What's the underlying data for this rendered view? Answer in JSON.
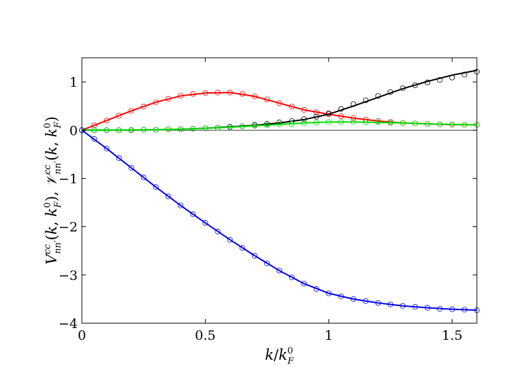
{
  "chart_data": {
    "type": "line",
    "title": "",
    "xlabel": "k/k_F^0",
    "ylabel": "V_nn'^cc(k, k_F^0), 𝒱_nn'^cc(k, k_F^0)",
    "xlim": [
      0,
      1.6
    ],
    "ylim": [
      -4,
      1.5
    ],
    "xticks": [
      0,
      0.5,
      1,
      1.5
    ],
    "xtick_labels": [
      "0",
      "0.5",
      "1",
      "1.5"
    ],
    "yticks": [
      -4,
      -3,
      -2,
      -1,
      0,
      1
    ],
    "ytick_labels": [
      "−4",
      "−3",
      "−2",
      "−1",
      "0",
      "1"
    ],
    "grid": false,
    "legend": "none",
    "zero_line": true,
    "series": [
      {
        "color": "#ff0000",
        "line_x": [
          0,
          0.1,
          0.2,
          0.3,
          0.4,
          0.5,
          0.6,
          0.7,
          0.8,
          0.9,
          1.0,
          1.1,
          1.2,
          1.3,
          1.4,
          1.5,
          1.6
        ],
        "line_y": [
          0,
          0.2,
          0.4,
          0.58,
          0.71,
          0.77,
          0.78,
          0.7,
          0.56,
          0.42,
          0.33,
          0.25,
          0.19,
          0.15,
          0.13,
          0.115,
          0.11
        ],
        "markers_x": [
          0,
          0.05,
          0.1,
          0.15,
          0.2,
          0.25,
          0.3,
          0.35,
          0.4,
          0.45,
          0.5,
          0.55,
          0.6,
          0.65,
          0.7,
          0.75,
          0.8,
          0.85,
          0.9,
          0.95,
          1.0,
          1.05,
          1.1,
          1.15,
          1.2,
          1.25,
          1.3,
          1.35,
          1.4,
          1.45,
          1.5,
          1.55,
          1.6
        ],
        "markers_y": [
          0,
          0.1,
          0.2,
          0.3,
          0.4,
          0.49,
          0.58,
          0.65,
          0.71,
          0.75,
          0.77,
          0.78,
          0.78,
          0.75,
          0.7,
          0.64,
          0.56,
          0.49,
          0.42,
          0.37,
          0.33,
          0.29,
          0.25,
          0.22,
          0.19,
          0.17,
          0.15,
          0.14,
          0.13,
          0.12,
          0.115,
          0.11,
          0.11
        ]
      },
      {
        "color": "#000000",
        "line_x": [
          0,
          0.1,
          0.2,
          0.3,
          0.4,
          0.5,
          0.6,
          0.7,
          0.8,
          0.9,
          1.0,
          1.1,
          1.2,
          1.3,
          1.4,
          1.5,
          1.6
        ],
        "line_y": [
          0,
          0,
          0,
          0.01,
          0.02,
          0.04,
          0.07,
          0.1,
          0.15,
          0.22,
          0.33,
          0.5,
          0.68,
          0.86,
          1.01,
          1.14,
          1.24
        ],
        "markers_x": [
          0,
          0.05,
          0.1,
          0.15,
          0.2,
          0.25,
          0.3,
          0.35,
          0.4,
          0.45,
          0.5,
          0.55,
          0.6,
          0.65,
          0.7,
          0.75,
          0.8,
          0.85,
          0.9,
          0.95,
          1.0,
          1.05,
          1.1,
          1.15,
          1.2,
          1.25,
          1.3,
          1.35,
          1.4,
          1.45,
          1.5,
          1.55,
          1.6
        ],
        "markers_y": [
          0,
          0,
          0,
          0,
          0,
          0.01,
          0.01,
          0.02,
          0.02,
          0.03,
          0.04,
          0.05,
          0.07,
          0.08,
          0.11,
          0.13,
          0.16,
          0.19,
          0.23,
          0.28,
          0.35,
          0.44,
          0.54,
          0.62,
          0.71,
          0.79,
          0.87,
          0.93,
          0.99,
          1.04,
          1.09,
          1.15,
          1.21
        ]
      },
      {
        "color": "#00dd00",
        "line_x": [
          0,
          0.1,
          0.2,
          0.3,
          0.4,
          0.5,
          0.6,
          0.7,
          0.8,
          0.9,
          1.0,
          1.1,
          1.2,
          1.3,
          1.4,
          1.5,
          1.6
        ],
        "line_y": [
          0,
          0,
          0.005,
          0.01,
          0.02,
          0.04,
          0.06,
          0.09,
          0.12,
          0.15,
          0.17,
          0.17,
          0.16,
          0.15,
          0.13,
          0.12,
          0.11
        ],
        "markers_x": [
          0,
          0.05,
          0.1,
          0.15,
          0.2,
          0.25,
          0.3,
          0.35,
          0.4,
          0.45,
          0.5,
          0.55,
          0.6,
          0.65,
          0.7,
          0.75,
          0.8,
          0.85,
          0.9,
          0.95,
          1.0,
          1.05,
          1.1,
          1.15,
          1.2,
          1.25,
          1.3,
          1.35,
          1.4,
          1.45,
          1.5,
          1.55,
          1.6
        ],
        "markers_y": [
          0,
          0,
          0,
          0,
          0.005,
          0.01,
          0.01,
          0.02,
          0.02,
          0.03,
          0.04,
          0.05,
          0.06,
          0.08,
          0.09,
          0.1,
          0.12,
          0.13,
          0.15,
          0.16,
          0.17,
          0.17,
          0.17,
          0.16,
          0.16,
          0.15,
          0.15,
          0.14,
          0.13,
          0.12,
          0.12,
          0.11,
          0.11
        ]
      },
      {
        "color": "#0000ee",
        "line_x": [
          0,
          0.1,
          0.2,
          0.3,
          0.4,
          0.5,
          0.6,
          0.7,
          0.8,
          0.9,
          1.0,
          1.1,
          1.2,
          1.3,
          1.4,
          1.5,
          1.6
        ],
        "line_y": [
          0,
          -0.38,
          -0.78,
          -1.18,
          -1.56,
          -1.92,
          -2.27,
          -2.6,
          -2.91,
          -3.18,
          -3.38,
          -3.5,
          -3.58,
          -3.64,
          -3.68,
          -3.71,
          -3.73
        ],
        "markers_x": [
          0,
          0.05,
          0.1,
          0.15,
          0.2,
          0.25,
          0.3,
          0.35,
          0.4,
          0.45,
          0.5,
          0.55,
          0.6,
          0.65,
          0.7,
          0.75,
          0.8,
          0.85,
          0.9,
          0.95,
          1.0,
          1.05,
          1.1,
          1.15,
          1.2,
          1.25,
          1.3,
          1.35,
          1.4,
          1.45,
          1.5,
          1.55,
          1.6
        ],
        "markers_y": [
          0,
          -0.18,
          -0.38,
          -0.58,
          -0.78,
          -0.98,
          -1.18,
          -1.37,
          -1.56,
          -1.74,
          -1.92,
          -2.1,
          -2.27,
          -2.44,
          -2.6,
          -2.76,
          -2.91,
          -3.05,
          -3.18,
          -3.29,
          -3.38,
          -3.44,
          -3.5,
          -3.54,
          -3.58,
          -3.61,
          -3.64,
          -3.66,
          -3.68,
          -3.7,
          -3.71,
          -3.72,
          -3.73
        ]
      }
    ]
  }
}
